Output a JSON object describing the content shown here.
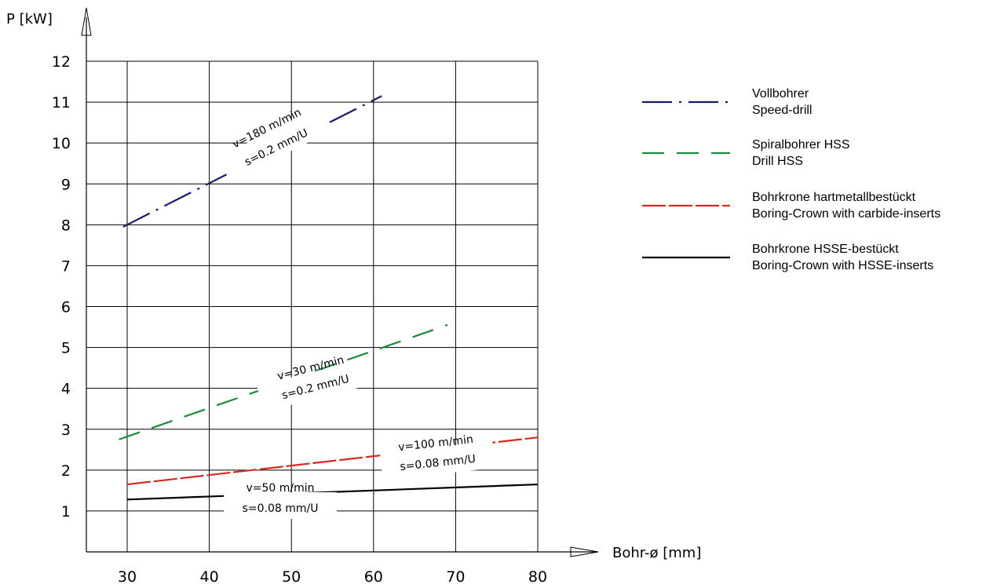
{
  "chart_data": {
    "type": "line",
    "ylabel": "P [kW]",
    "xlabel": "Bohr-ø [mm]",
    "xlim": [
      25,
      80
    ],
    "ylim": [
      0,
      12
    ],
    "xticks": [
      30,
      40,
      50,
      60,
      70,
      80
    ],
    "yticks": [
      1,
      2,
      3,
      4,
      5,
      6,
      7,
      8,
      9,
      10,
      11,
      12
    ],
    "grid": true,
    "legend_position": "right",
    "series": [
      {
        "legend": [
          "Vollbohrer",
          "Speed-drill"
        ],
        "color": "#1a1a66",
        "dash": "dash-dot",
        "x": [
          29.5,
          61
        ],
        "y": [
          7.95,
          11.15
        ],
        "annotation": {
          "v": "v=180 m/min",
          "s": "s=0.2 mm/U"
        }
      },
      {
        "legend": [
          "Spiralbohrer HSS",
          "Drill HSS"
        ],
        "color": "#1e8a3c",
        "dash": "dashed",
        "x": [
          29,
          69
        ],
        "y": [
          2.75,
          5.55
        ],
        "annotation": {
          "v": "v=30 m/min",
          "s": "s=0.2 mm/U"
        }
      },
      {
        "legend": [
          "Bohrkrone hartmetallbestückt",
          "Boring-Crown with carbide-inserts"
        ],
        "color": "#d42a1f",
        "dash": "long-dash",
        "x": [
          30,
          80
        ],
        "y": [
          1.65,
          2.8
        ],
        "annotation": {
          "v": "v=100 m/min",
          "s": "s=0.08 mm/U"
        }
      },
      {
        "legend": [
          "Bohrkrone HSSE-bestückt",
          "Boring-Crown with HSSE-inserts"
        ],
        "color": "#000000",
        "dash": "solid",
        "x": [
          30,
          80
        ],
        "y": [
          1.28,
          1.65
        ],
        "annotation": {
          "v": "v=50 m/min",
          "s": "s=0.08 mm/U"
        }
      }
    ]
  }
}
